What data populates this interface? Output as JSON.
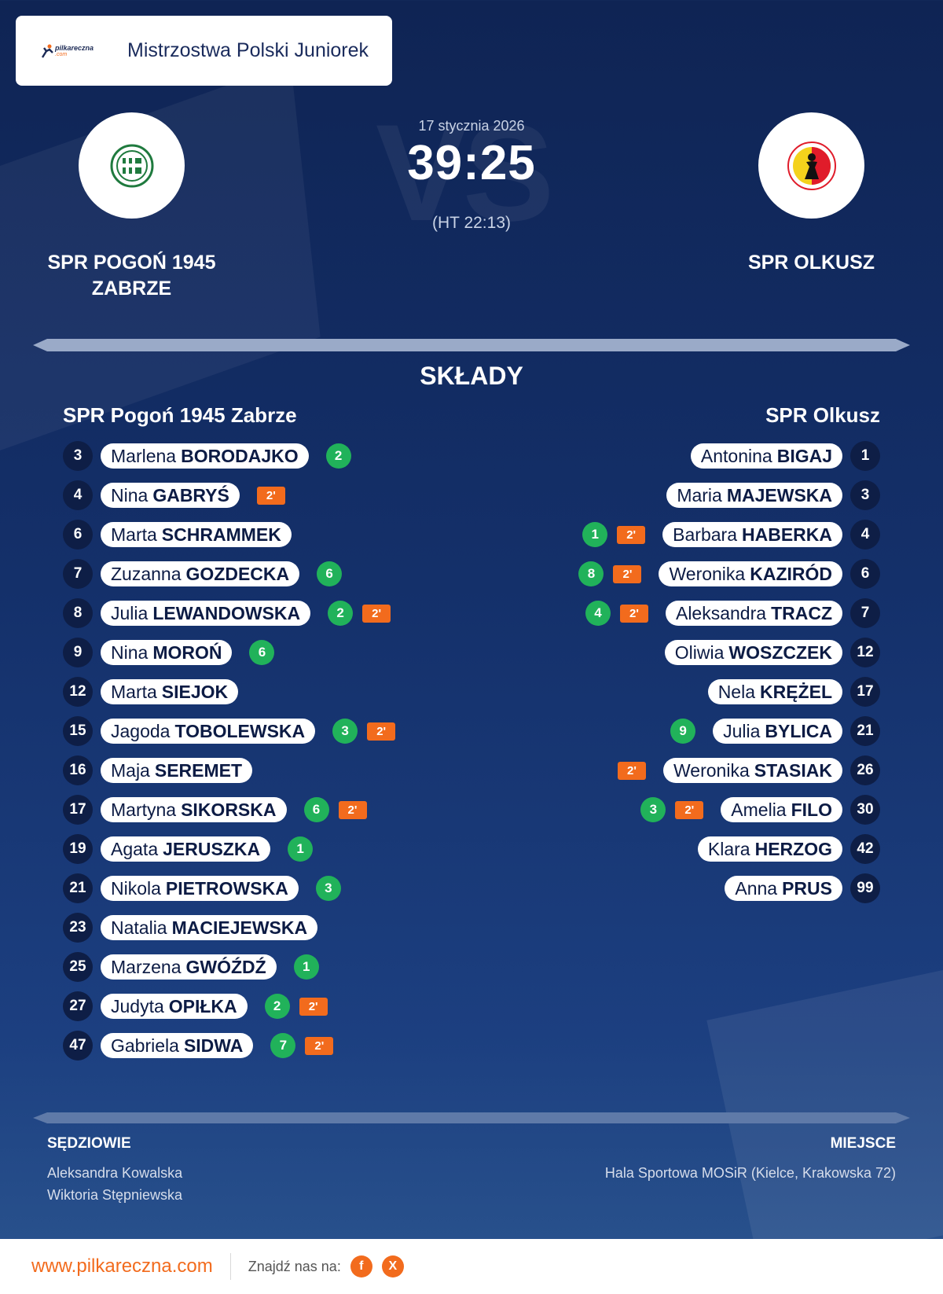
{
  "header": {
    "brand_text": "pilkareczna",
    "brand_sub": ".com",
    "title": "Mistrzostwa Polski Juniorek"
  },
  "match": {
    "date": "17 stycznia 2026",
    "score": "39:25",
    "halftime": "(HT 22:13)",
    "vs_text": "VS"
  },
  "teams": {
    "home": {
      "name": "SPR POGOŃ 1945 ZABRZE",
      "logo_icon": "pogon-zabrze-crest"
    },
    "away": {
      "name": "SPR OLKUSZ",
      "logo_icon": "olkusz-crest"
    }
  },
  "lineups": {
    "title": "SKŁADY",
    "home": {
      "heading": "SPR Pogoń 1945 Zabrze",
      "players": [
        {
          "number": "3",
          "first": "Marlena",
          "last": "BORODAJKO",
          "goals": "2",
          "suspension": ""
        },
        {
          "number": "4",
          "first": "Nina",
          "last": "GABRYŚ",
          "goals": "",
          "suspension": "2'"
        },
        {
          "number": "6",
          "first": "Marta",
          "last": "SCHRAMMEK",
          "goals": "",
          "suspension": ""
        },
        {
          "number": "7",
          "first": "Zuzanna",
          "last": "GOZDECKA",
          "goals": "6",
          "suspension": ""
        },
        {
          "number": "8",
          "first": "Julia",
          "last": "LEWANDOWSKA",
          "goals": "2",
          "suspension": "2'"
        },
        {
          "number": "9",
          "first": "Nina",
          "last": "MOROŃ",
          "goals": "6",
          "suspension": ""
        },
        {
          "number": "12",
          "first": "Marta",
          "last": "SIEJOK",
          "goals": "",
          "suspension": ""
        },
        {
          "number": "15",
          "first": "Jagoda",
          "last": "TOBOLEWSKA",
          "goals": "3",
          "suspension": "2'"
        },
        {
          "number": "16",
          "first": "Maja",
          "last": "SEREMET",
          "goals": "",
          "suspension": ""
        },
        {
          "number": "17",
          "first": "Martyna",
          "last": "SIKORSKA",
          "goals": "6",
          "suspension": "2'"
        },
        {
          "number": "19",
          "first": "Agata",
          "last": "JERUSZKA",
          "goals": "1",
          "suspension": ""
        },
        {
          "number": "21",
          "first": "Nikola",
          "last": "PIETROWSKA",
          "goals": "3",
          "suspension": ""
        },
        {
          "number": "23",
          "first": "Natalia",
          "last": "MACIEJEWSKA",
          "goals": "",
          "suspension": ""
        },
        {
          "number": "25",
          "first": "Marzena",
          "last": "GWÓŹDŹ",
          "goals": "1",
          "suspension": ""
        },
        {
          "number": "27",
          "first": "Judyta",
          "last": "OPIŁKA",
          "goals": "2",
          "suspension": "2'"
        },
        {
          "number": "47",
          "first": "Gabriela",
          "last": "SIDWA",
          "goals": "7",
          "suspension": "2'"
        }
      ]
    },
    "away": {
      "heading": "SPR Olkusz",
      "players": [
        {
          "number": "1",
          "first": "Antonina",
          "last": "BIGAJ",
          "goals": "",
          "suspension": ""
        },
        {
          "number": "3",
          "first": "Maria",
          "last": "MAJEWSKA",
          "goals": "",
          "suspension": ""
        },
        {
          "number": "4",
          "first": "Barbara",
          "last": "HABERKA",
          "goals": "1",
          "suspension": "2'"
        },
        {
          "number": "6",
          "first": "Weronika",
          "last": "KAZIRÓD",
          "goals": "8",
          "suspension": "2'"
        },
        {
          "number": "7",
          "first": "Aleksandra",
          "last": "TRACZ",
          "goals": "4",
          "suspension": "2'"
        },
        {
          "number": "12",
          "first": "Oliwia",
          "last": "WOSZCZEK",
          "goals": "",
          "suspension": ""
        },
        {
          "number": "17",
          "first": "Nela",
          "last": "KRĘŻEL",
          "goals": "",
          "suspension": ""
        },
        {
          "number": "21",
          "first": "Julia",
          "last": "BYLICA",
          "goals": "9",
          "suspension": ""
        },
        {
          "number": "26",
          "first": "Weronika",
          "last": "STASIAK",
          "goals": "",
          "suspension": "2'"
        },
        {
          "number": "30",
          "first": "Amelia",
          "last": "FILO",
          "goals": "3",
          "suspension": "2'"
        },
        {
          "number": "42",
          "first": "Klara",
          "last": "HERZOG",
          "goals": "",
          "suspension": ""
        },
        {
          "number": "99",
          "first": "Anna",
          "last": "PRUS",
          "goals": "",
          "suspension": ""
        }
      ]
    }
  },
  "officials": {
    "heading": "SĘDZIOWIE",
    "names": [
      "Aleksandra Kowalska",
      "Wiktoria Stępniewska"
    ]
  },
  "venue": {
    "heading": "MIEJSCE",
    "text": "Hala Sportowa MOSiR (Kielce, Krakowska 72)"
  },
  "footer": {
    "url": "www.pilkareczna.com",
    "find_us": "Znajdź nas na:",
    "social": [
      {
        "icon": "facebook-icon",
        "glyph": "f"
      },
      {
        "icon": "x-icon",
        "glyph": "X"
      }
    ]
  },
  "colors": {
    "accent": "#f26b1d",
    "goals_badge": "#21b25a",
    "number_badge": "#0e1e46",
    "background": "#14306a"
  }
}
